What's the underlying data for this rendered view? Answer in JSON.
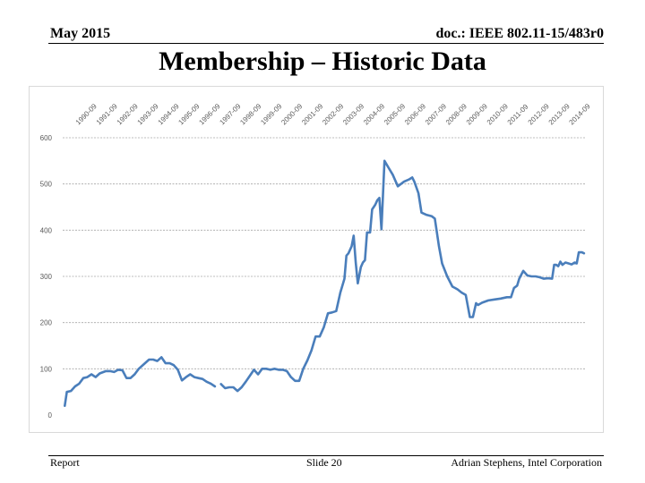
{
  "header": {
    "date": "May 2015",
    "doc": "doc.: IEEE 802.11-15/483r0"
  },
  "slide_title": "Membership – Historic Data",
  "footer": {
    "left": "Report",
    "center": "Slide 20",
    "right": "Adrian Stephens, Intel Corporation"
  },
  "colors": {
    "line": "#4a7ebb",
    "grid": "#a6a6a6"
  },
  "chart_data": {
    "type": "line",
    "title": "",
    "xlabel": "",
    "ylabel": "",
    "ylim": [
      0,
      600
    ],
    "yticks": [
      0,
      100,
      200,
      300,
      400,
      500,
      600
    ],
    "grid": true,
    "legend": "none",
    "xlim": [
      1989.9,
      2015.3
    ],
    "xticks": [
      {
        "label": "1990-09",
        "value": 1990.67
      },
      {
        "label": "1991-09",
        "value": 1991.67
      },
      {
        "label": "1992-09",
        "value": 1992.67
      },
      {
        "label": "1993-09",
        "value": 1993.67
      },
      {
        "label": "1994-09",
        "value": 1994.67
      },
      {
        "label": "1995-09",
        "value": 1995.67
      },
      {
        "label": "1996-09",
        "value": 1996.67
      },
      {
        "label": "1997-09",
        "value": 1997.67
      },
      {
        "label": "1998-09",
        "value": 1998.67
      },
      {
        "label": "1999-09",
        "value": 1999.67
      },
      {
        "label": "2000-09",
        "value": 2000.67
      },
      {
        "label": "2001-09",
        "value": 2001.67
      },
      {
        "label": "2002-09",
        "value": 2002.67
      },
      {
        "label": "2003-09",
        "value": 2003.67
      },
      {
        "label": "2004-09",
        "value": 2004.67
      },
      {
        "label": "2005-09",
        "value": 2005.67
      },
      {
        "label": "2006-09",
        "value": 2006.67
      },
      {
        "label": "2007-09",
        "value": 2007.67
      },
      {
        "label": "2008-09",
        "value": 2008.67
      },
      {
        "label": "2009-09",
        "value": 2009.67
      },
      {
        "label": "2010-09",
        "value": 2010.67
      },
      {
        "label": "2011-09",
        "value": 2011.67
      },
      {
        "label": "2012-09",
        "value": 2012.67
      },
      {
        "label": "2013-09",
        "value": 2013.67
      },
      {
        "label": "2014-09",
        "value": 2014.67
      }
    ],
    "segments": [
      [
        [
          1990.0,
          20
        ],
        [
          1990.1,
          50
        ],
        [
          1990.3,
          52
        ],
        [
          1990.5,
          62
        ],
        [
          1990.7,
          68
        ],
        [
          1990.9,
          80
        ],
        [
          1991.1,
          82
        ],
        [
          1991.3,
          88
        ],
        [
          1991.5,
          82
        ],
        [
          1991.7,
          90
        ],
        [
          1992.0,
          95
        ],
        [
          1992.2,
          95
        ],
        [
          1992.4,
          93
        ],
        [
          1992.6,
          98
        ],
        [
          1992.8,
          97
        ],
        [
          1993.0,
          80
        ],
        [
          1993.2,
          80
        ],
        [
          1993.4,
          88
        ],
        [
          1993.6,
          100
        ],
        [
          1993.9,
          112
        ],
        [
          1994.1,
          120
        ],
        [
          1994.3,
          120
        ],
        [
          1994.5,
          117
        ],
        [
          1994.7,
          125
        ],
        [
          1994.9,
          112
        ],
        [
          1995.1,
          112
        ],
        [
          1995.3,
          108
        ],
        [
          1995.5,
          98
        ],
        [
          1995.7,
          75
        ],
        [
          1995.9,
          82
        ],
        [
          1996.1,
          88
        ],
        [
          1996.3,
          82
        ],
        [
          1996.5,
          80
        ],
        [
          1996.7,
          78
        ],
        [
          1996.9,
          72
        ],
        [
          1997.1,
          68
        ],
        [
          1997.3,
          62
        ]
      ],
      [
        [
          1997.6,
          67
        ],
        [
          1997.8,
          58
        ],
        [
          1998.0,
          60
        ],
        [
          1998.2,
          60
        ],
        [
          1998.4,
          52
        ],
        [
          1998.6,
          60
        ],
        [
          1998.8,
          72
        ],
        [
          1999.0,
          85
        ],
        [
          1999.2,
          98
        ],
        [
          1999.4,
          88
        ],
        [
          1999.6,
          100
        ],
        [
          1999.8,
          100
        ],
        [
          2000.0,
          98
        ],
        [
          2000.2,
          100
        ],
        [
          2000.4,
          98
        ],
        [
          2000.6,
          98
        ],
        [
          2000.8,
          95
        ],
        [
          2001.0,
          82
        ],
        [
          2001.2,
          74
        ],
        [
          2001.4,
          74
        ],
        [
          2001.6,
          100
        ],
        [
          2001.8,
          118
        ],
        [
          2002.0,
          140
        ],
        [
          2002.2,
          170
        ],
        [
          2002.4,
          170
        ],
        [
          2002.6,
          190
        ],
        [
          2002.8,
          220
        ],
        [
          2003.0,
          222
        ],
        [
          2003.2,
          225
        ],
        [
          2003.4,
          265
        ],
        [
          2003.6,
          295
        ],
        [
          2003.7,
          345
        ],
        [
          2003.8,
          350
        ],
        [
          2003.95,
          365
        ],
        [
          2004.05,
          388
        ],
        [
          2004.15,
          330
        ],
        [
          2004.25,
          285
        ],
        [
          2004.4,
          320
        ],
        [
          2004.5,
          330
        ],
        [
          2004.6,
          335
        ],
        [
          2004.7,
          395
        ],
        [
          2004.85,
          395
        ],
        [
          2004.95,
          445
        ],
        [
          2005.1,
          455
        ],
        [
          2005.2,
          465
        ],
        [
          2005.3,
          470
        ],
        [
          2005.4,
          402
        ],
        [
          2005.55,
          550
        ],
        [
          2005.75,
          535
        ],
        [
          2005.95,
          520
        ],
        [
          2006.2,
          495
        ],
        [
          2006.5,
          505
        ],
        [
          2006.75,
          510
        ],
        [
          2006.9,
          514
        ],
        [
          2007.0,
          505
        ],
        [
          2007.2,
          480
        ],
        [
          2007.35,
          438
        ],
        [
          2007.6,
          433
        ],
        [
          2007.85,
          430
        ],
        [
          2008.0,
          425
        ],
        [
          2008.2,
          365
        ],
        [
          2008.35,
          328
        ],
        [
          2008.6,
          300
        ],
        [
          2008.85,
          278
        ],
        [
          2009.1,
          272
        ],
        [
          2009.3,
          265
        ],
        [
          2009.5,
          260
        ],
        [
          2009.7,
          212
        ],
        [
          2009.85,
          212
        ],
        [
          2010.0,
          242
        ],
        [
          2010.1,
          238
        ],
        [
          2010.3,
          243
        ],
        [
          2010.6,
          248
        ],
        [
          2010.9,
          250
        ],
        [
          2011.2,
          252
        ],
        [
          2011.5,
          255
        ],
        [
          2011.7,
          255
        ],
        [
          2011.85,
          275
        ],
        [
          2012.0,
          280
        ],
        [
          2012.1,
          295
        ],
        [
          2012.3,
          312
        ],
        [
          2012.5,
          302
        ],
        [
          2012.7,
          300
        ],
        [
          2012.9,
          300
        ],
        [
          2013.1,
          298
        ],
        [
          2013.3,
          295
        ],
        [
          2013.5,
          296
        ],
        [
          2013.7,
          295
        ],
        [
          2013.8,
          325
        ],
        [
          2013.9,
          325
        ],
        [
          2014.0,
          322
        ],
        [
          2014.1,
          332
        ],
        [
          2014.2,
          325
        ],
        [
          2014.35,
          330
        ],
        [
          2014.5,
          328
        ],
        [
          2014.65,
          326
        ],
        [
          2014.8,
          330
        ],
        [
          2014.9,
          328
        ],
        [
          2015.0,
          352
        ],
        [
          2015.15,
          352
        ],
        [
          2015.25,
          350
        ]
      ]
    ]
  }
}
